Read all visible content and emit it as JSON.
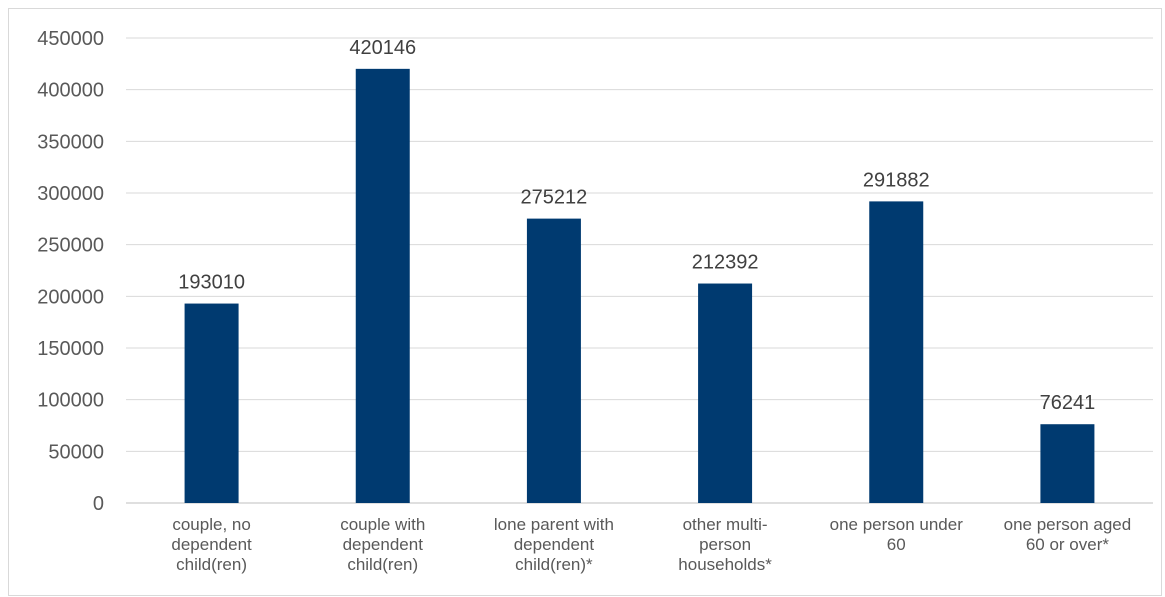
{
  "chart_data": {
    "type": "bar",
    "categories": [
      [
        "couple, no",
        "dependent",
        "child(ren)"
      ],
      [
        "couple with",
        "dependent",
        "child(ren)"
      ],
      [
        "lone parent with",
        "dependent",
        "child(ren)*"
      ],
      [
        "other multi-",
        "person",
        "households*"
      ],
      [
        "one person under",
        "60"
      ],
      [
        "one person aged",
        "60 or over*"
      ]
    ],
    "values": [
      193010,
      420146,
      275212,
      212392,
      291882,
      76241
    ],
    "data_labels": [
      "193010",
      "420146",
      "275212",
      "212392",
      "291882",
      "76241"
    ],
    "title": "",
    "xlabel": "",
    "ylabel": "",
    "ylim": [
      0,
      450000
    ],
    "yticks": [
      0,
      50000,
      100000,
      150000,
      200000,
      250000,
      300000,
      350000,
      400000,
      450000
    ],
    "ytick_labels": [
      "0",
      "50000",
      "100000",
      "150000",
      "200000",
      "250000",
      "300000",
      "350000",
      "400000",
      "450000"
    ],
    "grid": true,
    "legend": "none",
    "bar_color": "#003A70"
  }
}
